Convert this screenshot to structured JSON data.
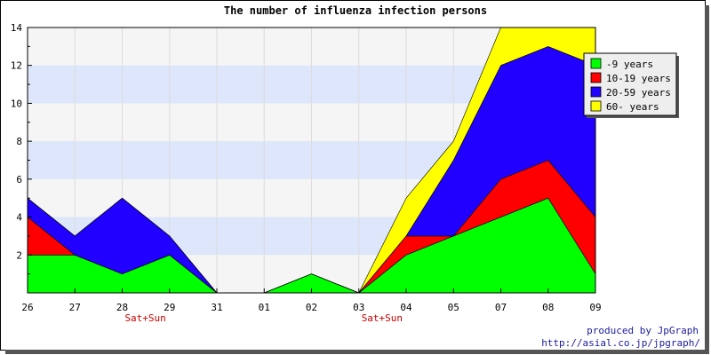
{
  "chart_data": {
    "type": "area",
    "stacked": true,
    "title": "The number of influenza infection persons",
    "categories": [
      "26",
      "27",
      "28",
      "29",
      "31",
      "01",
      "02",
      "03",
      "04",
      "05",
      "07",
      "08",
      "09"
    ],
    "weekend_label": "Sat+Sun",
    "weekend_marks": [
      2,
      7
    ],
    "ylim": [
      0,
      14
    ],
    "yticks": [
      2,
      4,
      6,
      8,
      10,
      12,
      14
    ],
    "series": [
      {
        "name": "-9 years",
        "color": "#00ff00",
        "values": [
          2,
          2,
          1,
          2,
          0,
          0,
          1,
          0,
          2,
          3,
          4,
          5,
          1
        ]
      },
      {
        "name": "10-19 years",
        "color": "#ff0000",
        "values": [
          2,
          0,
          0,
          0,
          0,
          0,
          0,
          0,
          1,
          0,
          2,
          2,
          3
        ]
      },
      {
        "name": "20-59 years",
        "color": "#2200ff",
        "values": [
          1,
          1,
          4,
          1,
          0,
          0,
          0,
          0,
          0,
          4,
          6,
          6,
          8
        ]
      },
      {
        "name": "60- years",
        "color": "#ffff00",
        "values": [
          0,
          0,
          0,
          0,
          0,
          0,
          0,
          0,
          2,
          1,
          2,
          1,
          2
        ]
      }
    ],
    "grid": true,
    "legend_position": "top-right"
  },
  "credit": {
    "line1": "produced by JpGraph",
    "line2": "http://asial.co.jp/jpgraph/"
  }
}
